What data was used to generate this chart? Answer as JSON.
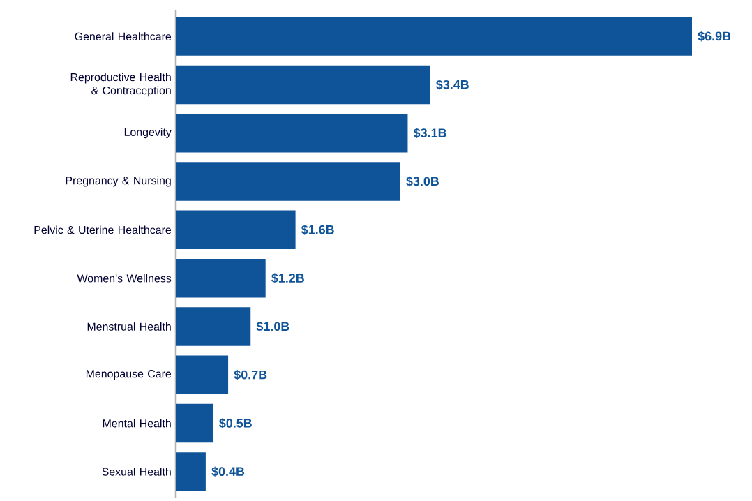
{
  "chart_data": {
    "type": "bar",
    "orientation": "horizontal",
    "color": "#0f5499",
    "categories": [
      "General Healthcare",
      "Reproductive Health & Contraception",
      "Longevity",
      "Pregnancy & Nursing",
      "Pelvic & Uterine Healthcare",
      "Women's Wellness",
      "Menstrual Health",
      "Menopause Care",
      "Mental Health",
      "Sexual Health"
    ],
    "values": [
      6.9,
      3.4,
      3.1,
      3.0,
      1.6,
      1.2,
      1.0,
      0.7,
      0.5,
      0.4
    ],
    "value_labels": [
      "$6.9B",
      "$3.4B",
      "$3.1B",
      "$3.0B",
      "$1.6B",
      "$1.2B",
      "$1.0B",
      "$0.7B",
      "$0.5B",
      "$0.4B"
    ]
  }
}
